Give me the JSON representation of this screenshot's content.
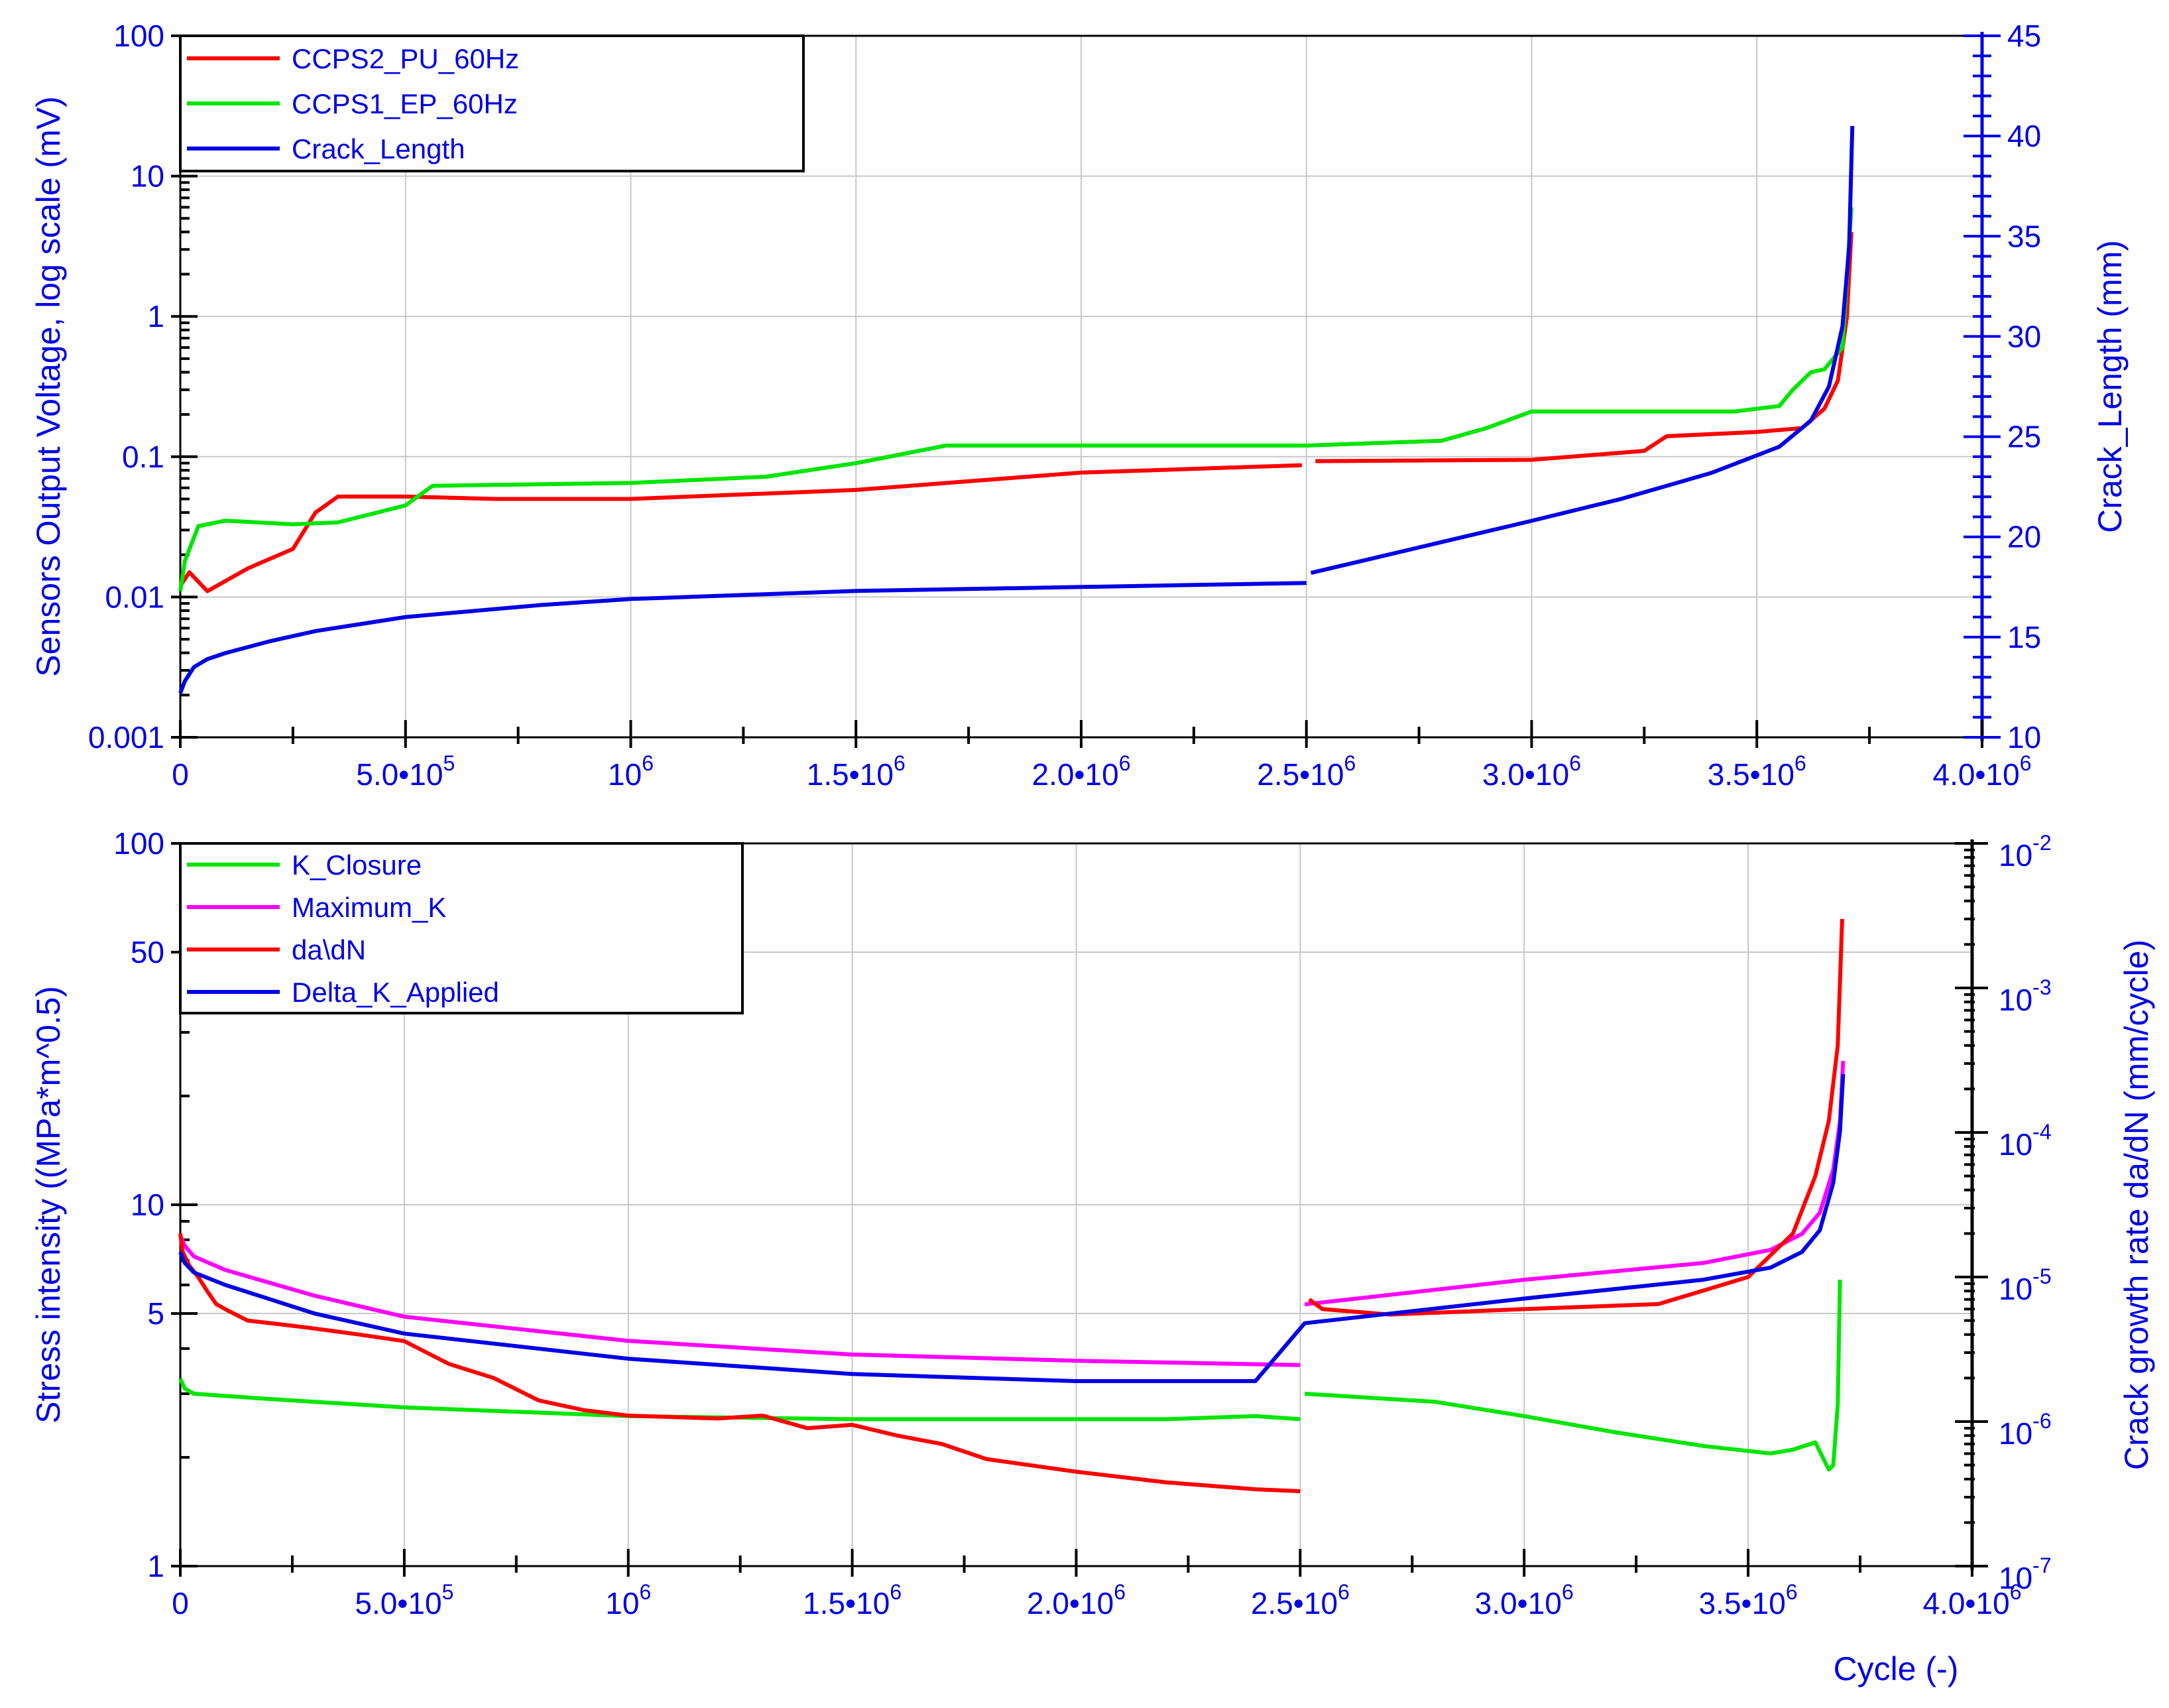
{
  "chart_data": [
    {
      "type": "line",
      "xlim": [
        0,
        4000000
      ],
      "ylim_left": [
        0.001,
        100
      ],
      "left_scale": "log",
      "ylim_right": [
        10,
        45
      ],
      "right_scale": "linear",
      "grid": true,
      "legend_position": "top-left",
      "ylabel_left": "Sensors Output Voltage, log scale (mV)",
      "ylabel_right": "Crack_Length (mm)",
      "left_ticks": [
        "0.001",
        "0.01",
        "0.1",
        "1",
        "10",
        "100"
      ],
      "right_ticks": [
        "10",
        "15",
        "20",
        "25",
        "30",
        "35",
        "40",
        "45"
      ],
      "x_ticks": [
        {
          "base": "0",
          "exp": ""
        },
        {
          "base": "5.0•10",
          "exp": "5"
        },
        {
          "base": "10",
          "exp": "6"
        },
        {
          "base": "1.5•10",
          "exp": "6"
        },
        {
          "base": "2.0•10",
          "exp": "6"
        },
        {
          "base": "2.5•10",
          "exp": "6"
        },
        {
          "base": "3.0•10",
          "exp": "6"
        },
        {
          "base": "3.5•10",
          "exp": "6"
        },
        {
          "base": "4.0•10",
          "exp": "6"
        }
      ],
      "series": [
        {
          "name": "CCPS2_PU_60Hz",
          "color": "#ff0000",
          "axis": "left",
          "x": [
            0,
            20000,
            60000,
            150000,
            250000,
            300000,
            350000,
            500000,
            700000,
            1000000,
            1500000,
            2000000,
            2490000,
            2500000,
            2520000,
            3000000,
            3250000,
            3300000,
            3500000,
            3600000,
            3650000,
            3680000,
            3700000,
            3710000
          ],
          "y": [
            0.012,
            0.015,
            0.011,
            0.016,
            0.022,
            0.04,
            0.052,
            0.052,
            0.05,
            0.05,
            0.058,
            0.077,
            0.087,
            0.078,
            0.093,
            0.095,
            0.11,
            0.14,
            0.15,
            0.16,
            0.22,
            0.35,
            1.0,
            4.0
          ]
        },
        {
          "name": "CCPS1_EP_60Hz",
          "color": "#00e600",
          "axis": "left",
          "x": [
            0,
            10000,
            40000,
            100000,
            250000,
            350000,
            500000,
            560000,
            700000,
            1000000,
            1300000,
            1500000,
            1700000,
            2000000,
            2500000,
            2800000,
            2900000,
            3000000,
            3200000,
            3450000,
            3550000,
            3580000,
            3620000,
            3650000,
            3690000,
            3710000
          ],
          "y": [
            0.011,
            0.018,
            0.032,
            0.035,
            0.033,
            0.034,
            0.045,
            0.062,
            0.063,
            0.065,
            0.072,
            0.09,
            0.12,
            0.12,
            0.12,
            0.13,
            0.16,
            0.21,
            0.21,
            0.21,
            0.23,
            0.3,
            0.4,
            0.42,
            0.6,
            6.0
          ]
        },
        {
          "name": "Crack_Length",
          "color": "#0000e6",
          "axis": "right",
          "x": [
            0,
            10000,
            30000,
            60000,
            100000,
            200000,
            300000,
            500000,
            800000,
            1000000,
            1500000,
            2000000,
            2500000,
            2510000,
            3000000,
            3200000,
            3400000,
            3550000,
            3620000,
            3660000,
            3690000,
            3705000,
            3712000
          ],
          "y": [
            12.2,
            12.8,
            13.5,
            13.9,
            14.2,
            14.8,
            15.3,
            16.0,
            16.6,
            16.9,
            17.3,
            17.5,
            17.7,
            18.2,
            20.8,
            21.9,
            23.2,
            24.5,
            25.8,
            27.5,
            30.5,
            34.5,
            40.5
          ]
        }
      ]
    },
    {
      "type": "line",
      "xlim": [
        0,
        4000000
      ],
      "ylim_left": [
        1,
        100
      ],
      "left_scale": "log",
      "ylim_right": [
        1e-07,
        0.01
      ],
      "right_scale": "log",
      "grid": true,
      "legend_position": "top-left",
      "ylabel_left": "Stress intensity ((MPa*m^0.5)",
      "ylabel_right": "Crack growth rate da/dN (mm/cycle)",
      "xlabel": "Cycle (-)",
      "left_ticks": [
        "1",
        "5",
        "10",
        "50",
        "100"
      ],
      "right_ticks": [
        {
          "base": "10",
          "exp": "-7"
        },
        {
          "base": "10",
          "exp": "-6"
        },
        {
          "base": "10",
          "exp": "-5"
        },
        {
          "base": "10",
          "exp": "-4"
        },
        {
          "base": "10",
          "exp": "-3"
        },
        {
          "base": "10",
          "exp": "-2"
        }
      ],
      "x_ticks": [
        {
          "base": "0",
          "exp": ""
        },
        {
          "base": "5.0•10",
          "exp": "5"
        },
        {
          "base": "10",
          "exp": "6"
        },
        {
          "base": "1.5•10",
          "exp": "6"
        },
        {
          "base": "2.0•10",
          "exp": "6"
        },
        {
          "base": "2.5•10",
          "exp": "6"
        },
        {
          "base": "3.0•10",
          "exp": "6"
        },
        {
          "base": "3.5•10",
          "exp": "6"
        },
        {
          "base": "4.0•10",
          "exp": "6"
        }
      ],
      "series": [
        {
          "name": "K_Closure",
          "color": "#00e600",
          "axis": "left",
          "x": [
            0,
            10000,
            30000,
            200000,
            500000,
            1000000,
            1500000,
            2000000,
            2200000,
            2400000,
            2500000,
            2510000,
            2800000,
            3000000,
            3200000,
            3400000,
            3550000,
            3600000,
            3650000,
            3680000,
            3690000,
            3700000,
            3705000
          ],
          "y": [
            3.3,
            3.1,
            3.0,
            2.9,
            2.75,
            2.6,
            2.55,
            2.55,
            2.55,
            2.6,
            2.55,
            3.0,
            2.85,
            2.6,
            2.35,
            2.15,
            2.05,
            2.1,
            2.2,
            1.85,
            1.9,
            2.8,
            6.2
          ]
        },
        {
          "name": "Maximum_K",
          "color": "#ff00ff",
          "axis": "left",
          "x": [
            0,
            10000,
            30000,
            100000,
            300000,
            500000,
            1000000,
            1500000,
            2000000,
            2500000,
            2510000,
            3000000,
            3400000,
            3550000,
            3620000,
            3660000,
            3690000,
            3705000,
            3712000
          ],
          "y": [
            8.2,
            7.7,
            7.2,
            6.6,
            5.6,
            4.9,
            4.2,
            3.85,
            3.7,
            3.6,
            5.3,
            6.2,
            6.9,
            7.5,
            8.3,
            9.5,
            12.5,
            17.0,
            25.0
          ]
        },
        {
          "name": "da\\dN",
          "color": "#ff0000",
          "axis": "right",
          "x": [
            0,
            5000,
            20000,
            40000,
            60000,
            80000,
            100000,
            150000,
            250000,
            300000,
            400000,
            500000,
            550000,
            600000,
            700000,
            800000,
            900000,
            1000000,
            1200000,
            1300000,
            1400000,
            1500000,
            1600000,
            1700000,
            1800000,
            2000000,
            2200000,
            2400000,
            2500000,
            2510000,
            2520000,
            2550000,
            2700000,
            3000000,
            3300000,
            3500000,
            3600000,
            3650000,
            3680000,
            3700000,
            3710000
          ],
          "y": [
            2e-05,
            1.5e-05,
            1.2e-05,
            1e-05,
            8e-06,
            6.5e-06,
            6e-06,
            5e-06,
            4.6e-06,
            4.4e-06,
            4e-06,
            3.6e-06,
            3e-06,
            2.5e-06,
            2e-06,
            1.4e-06,
            1.2e-06,
            1.1e-06,
            1.05e-06,
            1.1e-06,
            9e-07,
            9.5e-07,
            8e-07,
            7e-07,
            5.5e-07,
            4.5e-07,
            3.8e-07,
            3.4e-07,
            3.3e-07,
            1.3e-05,
            7e-06,
            6e-06,
            5.5e-06,
            6e-06,
            6.5e-06,
            1e-05,
            2e-05,
            5e-05,
            0.00012,
            0.0004,
            0.003
          ]
        },
        {
          "name": "Delta_K_Applied",
          "color": "#0000e6",
          "axis": "left",
          "x": [
            0,
            10000,
            30000,
            100000,
            300000,
            500000,
            1000000,
            1500000,
            2000000,
            2400000,
            2510000,
            3000000,
            3400000,
            3550000,
            3620000,
            3660000,
            3690000,
            3705000,
            3712000
          ],
          "y": [
            7.4,
            6.9,
            6.5,
            6.0,
            5.0,
            4.4,
            3.75,
            3.4,
            3.25,
            3.25,
            4.7,
            5.5,
            6.2,
            6.7,
            7.4,
            8.5,
            11.5,
            16.0,
            23.0
          ]
        }
      ]
    }
  ]
}
